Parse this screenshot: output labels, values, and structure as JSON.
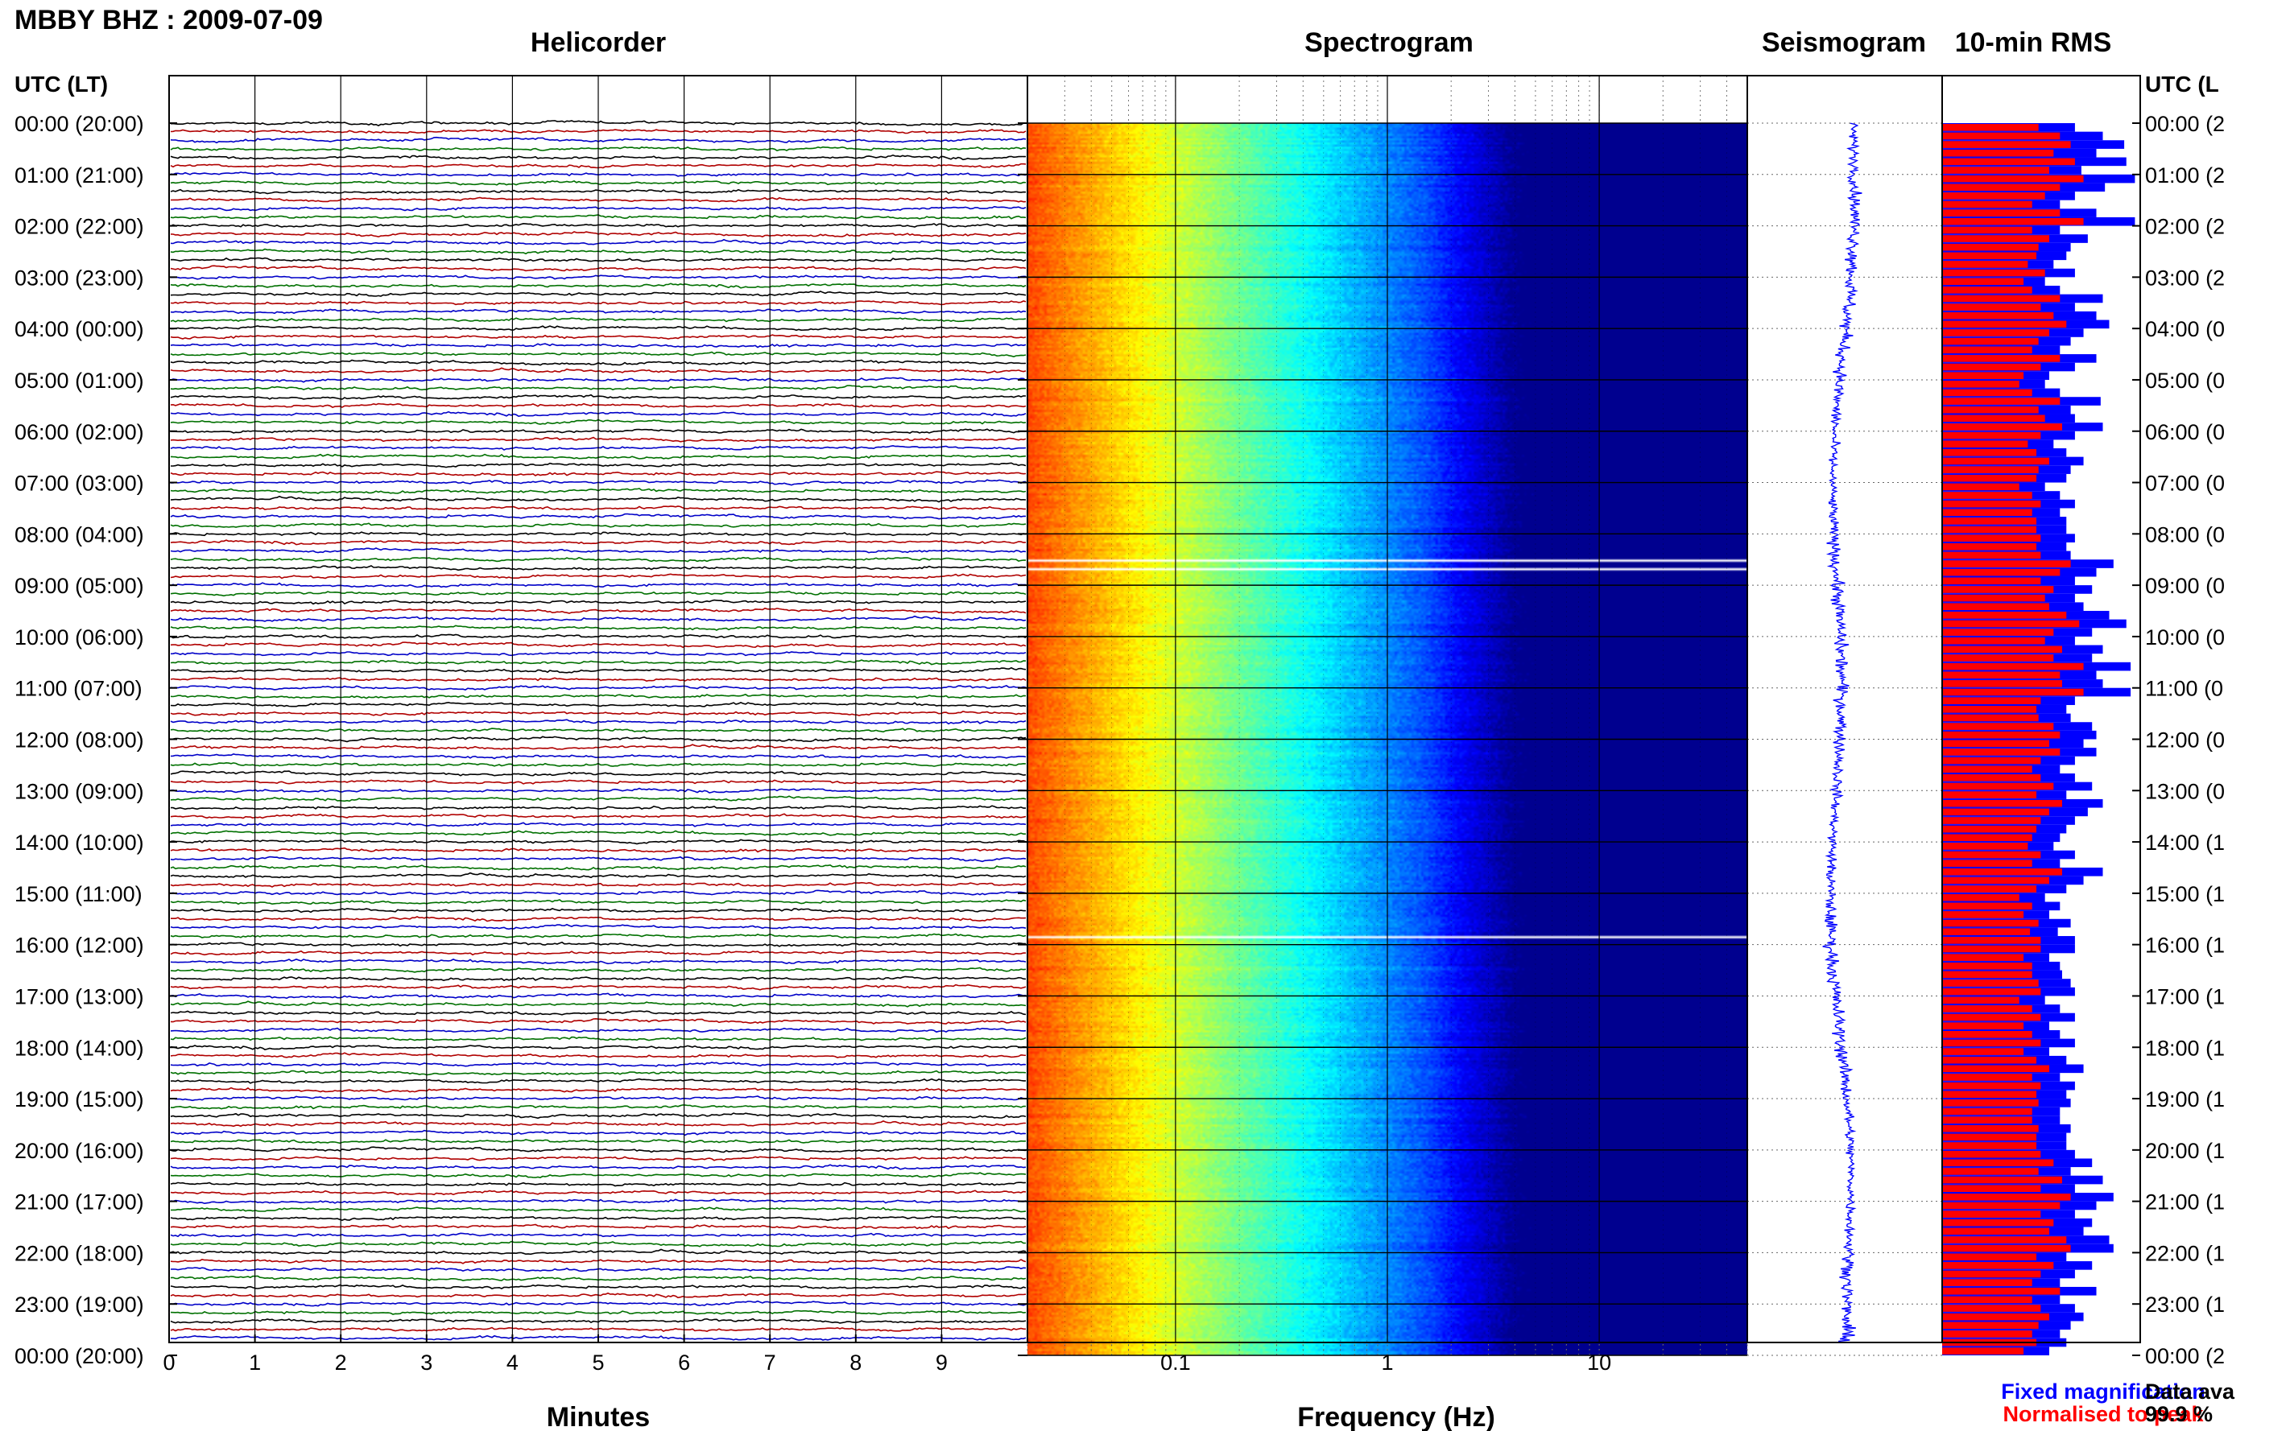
{
  "chart_data": [
    {
      "type": "line",
      "panel": "helicorder",
      "title": "Helicorder",
      "figure_title": "MBBY BHZ : 2009-07-09",
      "xlabel": "Minutes",
      "x_ticks": [
        0,
        1,
        2,
        3,
        4,
        5,
        6,
        7,
        8,
        9
      ],
      "xlim": [
        0,
        10
      ],
      "ylabel": "UTC (LT)",
      "y_ticks": [
        "00:00 (20:00)",
        "01:00 (21:00)",
        "02:00 (22:00)",
        "03:00 (23:00)",
        "04:00 (00:00)",
        "05:00 (01:00)",
        "06:00 (02:00)",
        "07:00 (03:00)",
        "08:00 (04:00)",
        "09:00 (05:00)",
        "10:00 (06:00)",
        "11:00 (07:00)",
        "12:00 (08:00)",
        "13:00 (09:00)",
        "14:00 (10:00)",
        "15:00 (11:00)",
        "16:00 (12:00)",
        "17:00 (13:00)",
        "18:00 (14:00)",
        "19:00 (15:00)",
        "20:00 (16:00)",
        "21:00 (17:00)",
        "22:00 (18:00)",
        "23:00 (19:00)",
        "00:00 (20:00)"
      ],
      "traces_per_hour": 6,
      "trace_colors": [
        "#000000",
        "#b00000",
        "#0000c8",
        "#007000"
      ],
      "grid": true
    },
    {
      "type": "heatmap",
      "panel": "spectrogram",
      "title": "Spectrogram",
      "xlabel": "Frequency (Hz)",
      "x_scale": "log",
      "x_ticks": [
        0.1,
        1,
        10
      ],
      "xlim": [
        0.02,
        50
      ],
      "rows_per_hour": 6,
      "colormap": [
        "#00008f",
        "#0000ff",
        "#0080ff",
        "#00ffff",
        "#80ff80",
        "#ffff00",
        "#ff8000",
        "#ff0000"
      ],
      "data_gaps_utc": [
        "08:30",
        "08:40",
        "15:50"
      ],
      "grid": true
    },
    {
      "type": "line",
      "panel": "seismogram",
      "title": "Seismogram",
      "color": "#0000ff"
    },
    {
      "type": "bar",
      "panel": "rms",
      "title": "10-min RMS",
      "orientation": "horizontal",
      "bins_per_hour": 6,
      "series": [
        {
          "name": "Fixed magnification",
          "color": "#0000ff",
          "values": [
            0.62,
            0.75,
            0.85,
            0.72,
            0.86,
            0.65,
            0.9,
            0.76,
            0.62,
            0.55,
            0.72,
            0.9,
            0.55,
            0.68,
            0.6,
            0.58,
            0.52,
            0.62,
            0.48,
            0.55,
            0.75,
            0.62,
            0.72,
            0.78,
            0.66,
            0.6,
            0.55,
            0.72,
            0.62,
            0.5,
            0.48,
            0.55,
            0.74,
            0.6,
            0.62,
            0.75,
            0.62,
            0.52,
            0.58,
            0.66,
            0.6,
            0.58,
            0.48,
            0.55,
            0.62,
            0.55,
            0.58,
            0.58,
            0.62,
            0.58,
            0.6,
            0.8,
            0.72,
            0.62,
            0.7,
            0.62,
            0.66,
            0.78,
            0.86,
            0.7,
            0.62,
            0.75,
            0.7,
            0.88,
            0.72,
            0.75,
            0.88,
            0.62,
            0.58,
            0.6,
            0.7,
            0.72,
            0.66,
            0.72,
            0.62,
            0.55,
            0.62,
            0.7,
            0.58,
            0.75,
            0.68,
            0.62,
            0.58,
            0.55,
            0.52,
            0.62,
            0.55,
            0.75,
            0.66,
            0.58,
            0.48,
            0.55,
            0.5,
            0.6,
            0.54,
            0.62,
            0.62,
            0.5,
            0.55,
            0.56,
            0.6,
            0.62,
            0.48,
            0.55,
            0.62,
            0.5,
            0.55,
            0.62,
            0.5,
            0.58,
            0.66,
            0.55,
            0.62,
            0.58,
            0.6,
            0.55,
            0.55,
            0.6,
            0.58,
            0.58,
            0.62,
            0.7,
            0.6,
            0.75,
            0.62,
            0.8,
            0.72,
            0.62,
            0.7,
            0.66,
            0.78,
            0.8,
            0.58,
            0.7,
            0.62,
            0.55,
            0.72,
            0.55,
            0.62,
            0.66,
            0.6,
            0.55,
            0.58,
            0.5
          ]
        },
        {
          "name": "Normalised to peak",
          "color": "#ff0000",
          "values": [
            0.45,
            0.55,
            0.6,
            0.52,
            0.62,
            0.5,
            0.66,
            0.55,
            0.48,
            0.42,
            0.55,
            0.66,
            0.42,
            0.5,
            0.45,
            0.44,
            0.4,
            0.48,
            0.38,
            0.42,
            0.55,
            0.46,
            0.52,
            0.58,
            0.5,
            0.45,
            0.42,
            0.55,
            0.46,
            0.38,
            0.36,
            0.42,
            0.55,
            0.45,
            0.48,
            0.56,
            0.46,
            0.4,
            0.44,
            0.5,
            0.45,
            0.44,
            0.36,
            0.42,
            0.46,
            0.42,
            0.44,
            0.44,
            0.46,
            0.44,
            0.46,
            0.6,
            0.55,
            0.46,
            0.52,
            0.48,
            0.5,
            0.58,
            0.64,
            0.52,
            0.48,
            0.56,
            0.52,
            0.66,
            0.55,
            0.56,
            0.66,
            0.46,
            0.44,
            0.45,
            0.52,
            0.55,
            0.5,
            0.55,
            0.46,
            0.42,
            0.46,
            0.52,
            0.44,
            0.56,
            0.5,
            0.46,
            0.44,
            0.42,
            0.4,
            0.46,
            0.42,
            0.56,
            0.5,
            0.44,
            0.36,
            0.42,
            0.38,
            0.45,
            0.41,
            0.46,
            0.46,
            0.38,
            0.42,
            0.42,
            0.45,
            0.46,
            0.36,
            0.42,
            0.46,
            0.38,
            0.42,
            0.46,
            0.38,
            0.44,
            0.5,
            0.42,
            0.46,
            0.44,
            0.45,
            0.42,
            0.42,
            0.45,
            0.44,
            0.44,
            0.46,
            0.52,
            0.45,
            0.56,
            0.46,
            0.6,
            0.55,
            0.46,
            0.52,
            0.5,
            0.58,
            0.6,
            0.44,
            0.52,
            0.46,
            0.42,
            0.55,
            0.42,
            0.46,
            0.5,
            0.45,
            0.42,
            0.44,
            0.38
          ]
        }
      ],
      "right_labels": [
        "00:00 (2",
        "01:00 (2",
        "02:00 (2",
        "03:00 (2",
        "04:00 (0",
        "05:00 (0",
        "06:00 (0",
        "07:00 (0",
        "08:00 (0",
        "09:00 (0",
        "10:00 (0",
        "11:00 (0",
        "12:00 (0",
        "13:00 (0",
        "14:00 (1",
        "15:00 (1",
        "16:00 (1",
        "17:00 (1",
        "18:00 (1",
        "19:00 (1",
        "20:00 (1",
        "21:00 (1",
        "22:00 (1",
        "23:00 (1",
        "00:00 (2"
      ],
      "right_header": "UTC (L",
      "legend": [
        "Fixed magnification",
        "Normalised to peak"
      ],
      "data_availability_label": "Data ava",
      "data_availability_value": "99.9 %"
    }
  ]
}
